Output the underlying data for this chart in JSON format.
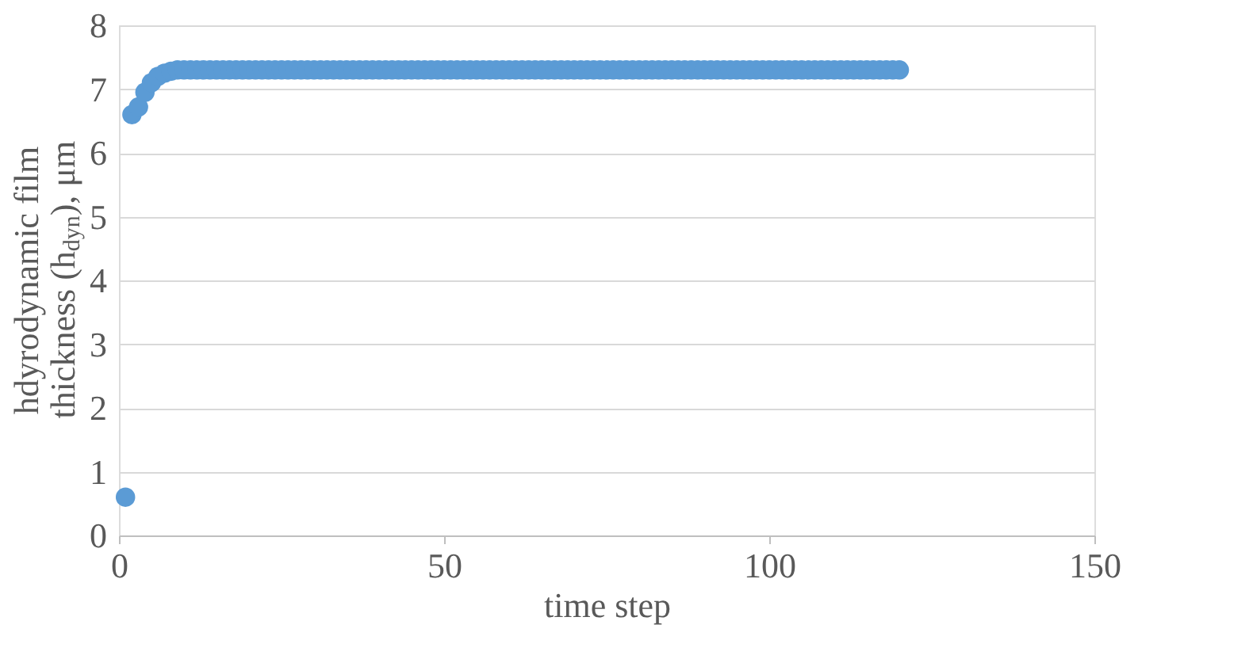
{
  "chart_data": {
    "type": "scatter",
    "xlabel": "time step",
    "ylabel": "hdyrodynamic film\nthickness (h$_{dyn}$), μm",
    "x": [
      1,
      2,
      3,
      4,
      5,
      6,
      7,
      8,
      9,
      10,
      11,
      12,
      13,
      14,
      15,
      16,
      17,
      18,
      19,
      20,
      21,
      22,
      23,
      24,
      25,
      26,
      27,
      28,
      29,
      30,
      31,
      32,
      33,
      34,
      35,
      36,
      37,
      38,
      39,
      40,
      41,
      42,
      43,
      44,
      45,
      46,
      47,
      48,
      49,
      50,
      51,
      52,
      53,
      54,
      55,
      56,
      57,
      58,
      59,
      60,
      61,
      62,
      63,
      64,
      65,
      66,
      67,
      68,
      69,
      70,
      71,
      72,
      73,
      74,
      75,
      76,
      77,
      78,
      79,
      80,
      81,
      82,
      83,
      84,
      85,
      86,
      87,
      88,
      89,
      90,
      91,
      92,
      93,
      94,
      95,
      96,
      97,
      98,
      99,
      100,
      101,
      102,
      103,
      104,
      105,
      106,
      107,
      108,
      109,
      110,
      111,
      112,
      113,
      114,
      115,
      116,
      117,
      118,
      119,
      120
    ],
    "series": [
      {
        "color": "#5b9bd5",
        "values": [
          0.6,
          6.6,
          6.72,
          6.95,
          7.1,
          7.2,
          7.25,
          7.28,
          7.3,
          7.3,
          7.3,
          7.3,
          7.3,
          7.3,
          7.3,
          7.3,
          7.3,
          7.3,
          7.3,
          7.3,
          7.3,
          7.3,
          7.3,
          7.3,
          7.3,
          7.3,
          7.3,
          7.3,
          7.3,
          7.3,
          7.3,
          7.3,
          7.3,
          7.3,
          7.3,
          7.3,
          7.3,
          7.3,
          7.3,
          7.3,
          7.3,
          7.3,
          7.3,
          7.3,
          7.3,
          7.3,
          7.3,
          7.3,
          7.3,
          7.3,
          7.3,
          7.3,
          7.3,
          7.3,
          7.3,
          7.3,
          7.3,
          7.3,
          7.3,
          7.3,
          7.3,
          7.3,
          7.3,
          7.3,
          7.3,
          7.3,
          7.3,
          7.3,
          7.3,
          7.3,
          7.3,
          7.3,
          7.3,
          7.3,
          7.3,
          7.3,
          7.3,
          7.3,
          7.3,
          7.3,
          7.3,
          7.3,
          7.3,
          7.3,
          7.3,
          7.3,
          7.3,
          7.3,
          7.3,
          7.3,
          7.3,
          7.3,
          7.3,
          7.3,
          7.3,
          7.3,
          7.3,
          7.3,
          7.3,
          7.3,
          7.3,
          7.3,
          7.3,
          7.3,
          7.3,
          7.3,
          7.3,
          7.3,
          7.3,
          7.3,
          7.3,
          7.3,
          7.3,
          7.3,
          7.3,
          7.3,
          7.3,
          7.3,
          7.3,
          7.3
        ]
      }
    ],
    "xlim": [
      0,
      150
    ],
    "xticks": [
      0,
      50,
      100,
      150
    ],
    "ylim": [
      0,
      8
    ],
    "yticks": [
      0,
      1,
      2,
      3,
      4,
      5,
      6,
      7,
      8
    ],
    "grid": "y",
    "marker": "circle",
    "legend": false
  }
}
